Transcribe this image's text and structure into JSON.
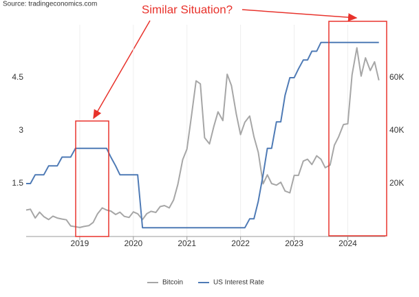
{
  "chart_data": {
    "type": "line",
    "title": "Similar Situation?",
    "source": "Source: tradingeconomics.com",
    "x": [
      2018.0,
      2018.08,
      2018.17,
      2018.25,
      2018.33,
      2018.42,
      2018.5,
      2018.58,
      2018.67,
      2018.75,
      2018.83,
      2018.92,
      2019.0,
      2019.08,
      2019.17,
      2019.25,
      2019.33,
      2019.42,
      2019.5,
      2019.58,
      2019.67,
      2019.75,
      2019.83,
      2019.92,
      2020.0,
      2020.08,
      2020.17,
      2020.25,
      2020.33,
      2020.42,
      2020.5,
      2020.58,
      2020.67,
      2020.75,
      2020.83,
      2020.92,
      2021.0,
      2021.08,
      2021.17,
      2021.25,
      2021.33,
      2021.42,
      2021.5,
      2021.58,
      2021.67,
      2021.75,
      2021.83,
      2021.92,
      2022.0,
      2022.08,
      2022.17,
      2022.25,
      2022.33,
      2022.42,
      2022.5,
      2022.58,
      2022.67,
      2022.75,
      2022.83,
      2022.92,
      2023.0,
      2023.08,
      2023.17,
      2023.25,
      2023.33,
      2023.42,
      2023.5,
      2023.58,
      2023.67,
      2023.75,
      2023.83,
      2023.92,
      2024.0,
      2024.08,
      2024.17,
      2024.25,
      2024.33,
      2024.42,
      2024.5,
      2024.58
    ],
    "series": [
      {
        "name": "Bitcoin",
        "color": "#a6a6a6",
        "axis": "y2",
        "values": [
          10000,
          10300,
          7000,
          9200,
          7500,
          6400,
          7700,
          7000,
          6600,
          6300,
          4000,
          3700,
          3400,
          3800,
          4100,
          5300,
          8500,
          10800,
          10000,
          9600,
          8300,
          9200,
          7600,
          7200,
          9300,
          8600,
          6400,
          8600,
          9500,
          9100,
          11300,
          11700,
          10800,
          13800,
          19700,
          29000,
          33000,
          45000,
          58800,
          57700,
          37300,
          35000,
          41500,
          47100,
          43800,
          61300,
          57000,
          46300,
          38500,
          43200,
          45500,
          37700,
          31800,
          19900,
          23300,
          20000,
          19400,
          20500,
          17200,
          16500,
          23100,
          23100,
          28500,
          29200,
          27200,
          30500,
          29200,
          26000,
          27000,
          34500,
          37700,
          42300,
          42600,
          61100,
          71300,
          60600,
          67500,
          62700,
          66000,
          59000
        ]
      },
      {
        "name": "US Interest Rate",
        "color": "#4e7ab5",
        "values": [
          1.5,
          1.5,
          1.75,
          1.75,
          1.75,
          2.0,
          2.0,
          2.0,
          2.25,
          2.25,
          2.25,
          2.5,
          2.5,
          2.5,
          2.5,
          2.5,
          2.5,
          2.5,
          2.5,
          2.25,
          2.0,
          1.75,
          1.75,
          1.75,
          1.75,
          1.75,
          0.25,
          0.25,
          0.25,
          0.25,
          0.25,
          0.25,
          0.25,
          0.25,
          0.25,
          0.25,
          0.25,
          0.25,
          0.25,
          0.25,
          0.25,
          0.25,
          0.25,
          0.25,
          0.25,
          0.25,
          0.25,
          0.25,
          0.25,
          0.25,
          0.5,
          0.5,
          1.0,
          1.75,
          2.5,
          2.5,
          3.25,
          3.25,
          4.0,
          4.5,
          4.5,
          4.75,
          5.0,
          5.0,
          5.25,
          5.25,
          5.5,
          5.5,
          5.5,
          5.5,
          5.5,
          5.5,
          5.5,
          5.5,
          5.5,
          5.5,
          5.5,
          5.5,
          5.5,
          5.5
        ]
      }
    ],
    "xlim": [
      2018,
      2024.7
    ],
    "xticks": [
      2019,
      2020,
      2021,
      2022,
      2023,
      2024
    ],
    "ylim": [
      0,
      6
    ],
    "yticks": [
      1.5,
      3,
      4.5
    ],
    "y2lim": [
      0,
      80000
    ],
    "y2ticks": [
      {
        "value": 20000,
        "label": "20K"
      },
      {
        "value": 40000,
        "label": "40K"
      },
      {
        "value": 60000,
        "label": "60K"
      }
    ],
    "grid": true,
    "legend": "bottom"
  }
}
